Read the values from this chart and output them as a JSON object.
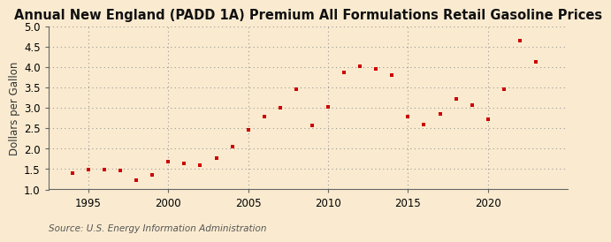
{
  "title": "Annual New England (PADD 1A) Premium All Formulations Retail Gasoline Prices",
  "ylabel": "Dollars per Gallon",
  "source": "Source: U.S. Energy Information Administration",
  "background_color": "#faebd0",
  "plot_bg_color": "#faebd0",
  "marker_color": "#cc0000",
  "years": [
    1994,
    1995,
    1996,
    1997,
    1998,
    1999,
    2000,
    2001,
    2002,
    2003,
    2004,
    2005,
    2006,
    2007,
    2008,
    2009,
    2010,
    2011,
    2012,
    2013,
    2014,
    2015,
    2016,
    2017,
    2018,
    2019,
    2020,
    2021,
    2022,
    2023
  ],
  "values": [
    1.4,
    1.48,
    1.49,
    1.47,
    1.22,
    1.35,
    1.68,
    1.65,
    1.6,
    1.78,
    2.06,
    2.47,
    2.8,
    3.01,
    3.47,
    2.57,
    3.04,
    3.87,
    4.02,
    3.97,
    3.82,
    2.8,
    2.6,
    2.85,
    3.23,
    3.08,
    2.72,
    3.47,
    4.65,
    4.14
  ],
  "xlim": [
    1992.5,
    2025
  ],
  "ylim": [
    1.0,
    5.0
  ],
  "yticks": [
    1.0,
    1.5,
    2.0,
    2.5,
    3.0,
    3.5,
    4.0,
    4.5,
    5.0
  ],
  "xticks": [
    1995,
    2000,
    2005,
    2010,
    2015,
    2020
  ],
  "title_fontsize": 10.5,
  "label_fontsize": 8.5,
  "tick_fontsize": 8.5,
  "source_fontsize": 7.5
}
